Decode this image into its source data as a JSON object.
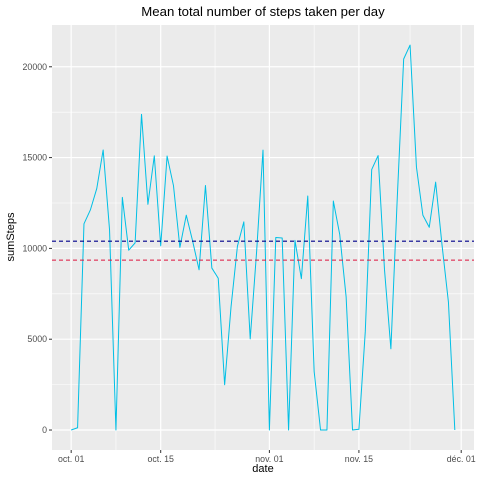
{
  "chart_data": {
    "type": "line",
    "title": "Mean total number of steps taken per day",
    "xlabel": "date",
    "ylabel": "sumSteps",
    "x_ticks": [
      {
        "date": "2012-10-01",
        "label": "oct. 01"
      },
      {
        "date": "2012-10-15",
        "label": "oct. 15"
      },
      {
        "date": "2012-11-01",
        "label": "nov. 01"
      },
      {
        "date": "2012-11-15",
        "label": "nov. 15"
      },
      {
        "date": "2012-12-01",
        "label": "déc. 01"
      }
    ],
    "y_ticks": [
      0,
      5000,
      10000,
      15000,
      20000
    ],
    "xlim": [
      "2012-09-28",
      "2012-12-03"
    ],
    "ylim": [
      -1100,
      22300
    ],
    "grid": true,
    "background": "#ebebeb",
    "grid_color": "#ffffff",
    "series": [
      {
        "color": "#00bfe5",
        "x": [
          "2012-10-01",
          "2012-10-02",
          "2012-10-03",
          "2012-10-04",
          "2012-10-05",
          "2012-10-06",
          "2012-10-07",
          "2012-10-08",
          "2012-10-09",
          "2012-10-10",
          "2012-10-11",
          "2012-10-12",
          "2012-10-13",
          "2012-10-14",
          "2012-10-15",
          "2012-10-16",
          "2012-10-17",
          "2012-10-18",
          "2012-10-19",
          "2012-10-20",
          "2012-10-21",
          "2012-10-22",
          "2012-10-23",
          "2012-10-24",
          "2012-10-25",
          "2012-10-26",
          "2012-10-27",
          "2012-10-28",
          "2012-10-29",
          "2012-10-30",
          "2012-10-31",
          "2012-11-01",
          "2012-11-02",
          "2012-11-03",
          "2012-11-04",
          "2012-11-05",
          "2012-11-06",
          "2012-11-07",
          "2012-11-08",
          "2012-11-09",
          "2012-11-10",
          "2012-11-11",
          "2012-11-12",
          "2012-11-13",
          "2012-11-14",
          "2012-11-15",
          "2012-11-16",
          "2012-11-17",
          "2012-11-18",
          "2012-11-19",
          "2012-11-20",
          "2012-11-21",
          "2012-11-22",
          "2012-11-23",
          "2012-11-24",
          "2012-11-25",
          "2012-11-26",
          "2012-11-27",
          "2012-11-28",
          "2012-11-29",
          "2012-11-30"
        ],
        "values": [
          0,
          126,
          11352,
          12116,
          13294,
          15420,
          11015,
          0,
          12811,
          9900,
          10304,
          17382,
          12426,
          15098,
          10139,
          15084,
          13452,
          10056,
          11829,
          10395,
          8821,
          13460,
          8918,
          8355,
          2492,
          6778,
          10119,
          11458,
          5018,
          9819,
          15414,
          0,
          10600,
          10571,
          0,
          10439,
          8334,
          12883,
          3219,
          0,
          0,
          12608,
          10765,
          7336,
          0,
          41,
          5441,
          14339,
          15110,
          8841,
          4472,
          12787,
          20427,
          21194,
          14478,
          11834,
          11162,
          13646,
          10183,
          7047,
          0
        ]
      }
    ],
    "hlines": [
      {
        "value": 10395,
        "color": "#00008b",
        "style": "dashed"
      },
      {
        "value": 9354,
        "color": "#dc143c",
        "style": "dashed"
      }
    ]
  }
}
